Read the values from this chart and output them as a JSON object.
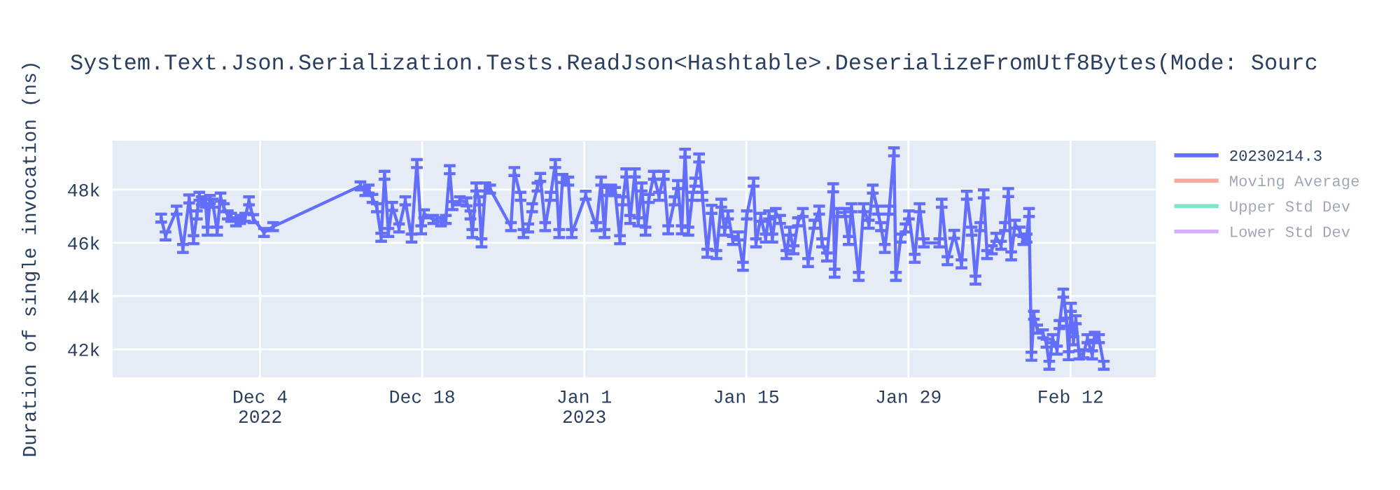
{
  "chart_data": {
    "type": "line",
    "title": "System.Text.Json.Serialization.Tests.ReadJson<Hashtable>.DeserializeFromUtf8Bytes(Mode: Sourc",
    "ylabel": "Duration of single invocation (ns)",
    "x": [
      "2022-11-25T11:00",
      "2022-11-25T20:00",
      "2022-11-26T19:00",
      "2022-11-27T08:00",
      "2022-11-27T21:00",
      "2022-11-28T06:00",
      "2022-11-28T13:00",
      "2022-11-28T18:00",
      "2022-11-28T23:00",
      "2022-11-29T07:00",
      "2022-11-29T11:00",
      "2022-11-29T16:00",
      "2022-11-29T22:00",
      "2022-11-30T07:00",
      "2022-11-30T14:00",
      "2022-11-30T21:00",
      "2022-12-01T05:00",
      "2022-12-01T12:00",
      "2022-12-01T22:00",
      "2022-12-02T07:00",
      "2022-12-02T17:00",
      "2022-12-03T01:00",
      "2022-12-03T10:00",
      "2022-12-04T08:00",
      "2022-12-05T03:00",
      "2022-12-12T16:00",
      "2022-12-13T02:00",
      "2022-12-13T09:00",
      "2022-12-13T17:00",
      "2022-12-14T02:00",
      "2022-12-14T11:00",
      "2022-12-14T18:00",
      "2022-12-15T02:00",
      "2022-12-15T10:00",
      "2022-12-16T00:00",
      "2022-12-16T13:00",
      "2022-12-17T02:00",
      "2022-12-17T13:00",
      "2022-12-17T22:00",
      "2022-12-18T04:00",
      "2022-12-18T23:00",
      "2022-12-19T15:00",
      "2022-12-20T01:00",
      "2022-12-20T09:00",
      "2022-12-20T15:00",
      "2022-12-21T06:00",
      "2022-12-21T20:00",
      "2022-12-22T04:00",
      "2022-12-22T08:00",
      "2022-12-22T16:00",
      "2022-12-22T22:00",
      "2022-12-23T03:00",
      "2022-12-23T11:00",
      "2022-12-23T21:00",
      "2022-12-25T16:00",
      "2022-12-25T23:00",
      "2022-12-26T12:00",
      "2022-12-26T18:00",
      "2022-12-27T04:00",
      "2022-12-27T12:00",
      "2022-12-27T23:00",
      "2022-12-28T05:00",
      "2022-12-28T15:00",
      "2022-12-29T02:00",
      "2022-12-29T12:00",
      "2022-12-29T20:00",
      "2022-12-30T03:00",
      "2022-12-30T15:00",
      "2022-12-30T22:00",
      "2023-01-01T03:00",
      "2023-01-02T01:00",
      "2023-01-02T11:00",
      "2023-01-02T18:00",
      "2023-01-02T23:00",
      "2023-01-03T08:00",
      "2023-01-03T16:00",
      "2023-01-04T02:00",
      "2023-01-04T08:00",
      "2023-01-04T15:00",
      "2023-01-04T23:00",
      "2023-01-05T09:00",
      "2023-01-05T16:00",
      "2023-01-05T23:00",
      "2023-01-06T07:00",
      "2023-01-06T14:00",
      "2023-01-07T00:00",
      "2023-01-07T11:00",
      "2023-01-07T21:00",
      "2023-01-08T06:00",
      "2023-01-08T19:00",
      "2023-01-09T02:00",
      "2023-01-09T10:00",
      "2023-01-09T17:00",
      "2023-01-10T00:00",
      "2023-01-10T08:00",
      "2023-01-10T14:00",
      "2023-01-10T22:00",
      "2023-01-11T05:00",
      "2023-01-11T15:00",
      "2023-01-12T00:00",
      "2023-01-12T10:00",
      "2023-01-12T20:00",
      "2023-01-13T03:00",
      "2023-01-13T10:00",
      "2023-01-13T20:00",
      "2023-01-14T07:00",
      "2023-01-14T17:00",
      "2023-01-15T01:00",
      "2023-01-15T15:00",
      "2023-01-15T20:00",
      "2023-01-16T06:00",
      "2023-01-16T16:00",
      "2023-01-16T23:00",
      "2023-01-17T06:00",
      "2023-01-17T13:00",
      "2023-01-17T22:00",
      "2023-01-18T11:00",
      "2023-01-18T18:00",
      "2023-01-19T02:00",
      "2023-01-19T11:00",
      "2023-01-19T21:00",
      "2023-01-20T08:00",
      "2023-01-20T21:00",
      "2023-01-21T07:00",
      "2023-01-21T13:00",
      "2023-01-21T23:00",
      "2023-01-22T12:00",
      "2023-01-22T15:00",
      "2023-01-22T21:00",
      "2023-01-23T12:00",
      "2023-01-23T20:00",
      "2023-01-24T02:00",
      "2023-01-24T17:00",
      "2023-01-25T03:00",
      "2023-01-25T14:00",
      "2023-01-25T22:00",
      "2023-01-26T08:00",
      "2023-01-26T15:00",
      "2023-01-26T23:00",
      "2023-01-27T08:00",
      "2023-01-27T18:00",
      "2023-01-27T22:00",
      "2023-01-28T08:00",
      "2023-01-28T18:00",
      "2023-01-29T01:00",
      "2023-01-29T13:00",
      "2023-01-29T23:00",
      "2023-01-30T08:00",
      "2023-01-31T16:00",
      "2023-01-31T21:00",
      "2023-02-01T09:00",
      "2023-02-01T23:00",
      "2023-02-02T14:00",
      "2023-02-03T01:00",
      "2023-02-03T11:00",
      "2023-02-03T19:00",
      "2023-02-04T05:00",
      "2023-02-04T12:00",
      "2023-02-04T19:00",
      "2023-02-05T05:00",
      "2023-02-05T14:00",
      "2023-02-06T00:00",
      "2023-02-06T08:00",
      "2023-02-06T15:00",
      "2023-02-06T21:00",
      "2023-02-07T05:00",
      "2023-02-07T15:00",
      "2023-02-07T22:00",
      "2023-02-08T05:00",
      "2023-02-08T10:00",
      "2023-02-08T15:00",
      "2023-02-08T20:00",
      "2023-02-09T03:00",
      "2023-02-09T15:00",
      "2023-02-09T22:00",
      "2023-02-10T04:00",
      "2023-02-10T11:00",
      "2023-02-10T20:00",
      "2023-02-11T01:00",
      "2023-02-11T09:00",
      "2023-02-11T16:00",
      "2023-02-11T20:00",
      "2023-02-12T01:00",
      "2023-02-12T06:00",
      "2023-02-12T11:00",
      "2023-02-12T18:00",
      "2023-02-13T03:00",
      "2023-02-13T11:00",
      "2023-02-13T21:00",
      "2023-02-14T02:00",
      "2023-02-14T11:00",
      "2023-02-14T21:00"
    ],
    "series": [
      {
        "name": "20230214.3",
        "color": "#636efa",
        "values": [
          46930,
          46260,
          47230,
          45790,
          47650,
          46120,
          47050,
          47750,
          47580,
          47490,
          46440,
          47630,
          47490,
          46440,
          47720,
          47320,
          47050,
          46960,
          46790,
          46880,
          46960,
          47580,
          46910,
          46390,
          46610,
          48140,
          47930,
          48020,
          47670,
          47320,
          46210,
          48540,
          46390,
          47370,
          46560,
          47580,
          46180,
          48980,
          46490,
          47090,
          46880,
          46790,
          46880,
          48750,
          47400,
          47580,
          47540,
          47050,
          46350,
          48100,
          47580,
          46000,
          48100,
          48020,
          46610,
          48680,
          47750,
          46350,
          46560,
          47320,
          48100,
          48460,
          46610,
          47750,
          48980,
          46350,
          48420,
          48320,
          46350,
          47790,
          46610,
          48320,
          46350,
          47930,
          48020,
          47930,
          46120,
          47580,
          48630,
          46880,
          48630,
          46790,
          48100,
          46440,
          47670,
          48540,
          47750,
          48540,
          46490,
          47580,
          48190,
          46490,
          49370,
          46440,
          47750,
          48280,
          49190,
          47750,
          45610,
          47260,
          45560,
          47490,
          46440,
          47050,
          46090,
          46260,
          45120,
          47050,
          48280,
          46000,
          46960,
          46180,
          47050,
          46180,
          47140,
          46880,
          45560,
          46440,
          45740,
          46790,
          47140,
          45260,
          46700,
          47230,
          46000,
          45470,
          48070,
          44860,
          47140,
          47140,
          46090,
          47320,
          44740,
          47320,
          46700,
          48020,
          47230,
          46610,
          45790,
          47230,
          49420,
          44740,
          46180,
          46560,
          47050,
          45420,
          47320,
          46000,
          46000,
          47490,
          45330,
          46320,
          45210,
          47790,
          46440,
          44600,
          46610,
          47840,
          45560,
          45740,
          46210,
          45910,
          46610,
          47890,
          45510,
          46700,
          46440,
          46090,
          46180,
          47140,
          41740,
          43280,
          42760,
          42580,
          42230,
          41400,
          42400,
          41970,
          42930,
          44110,
          43020,
          41760,
          43580,
          42320,
          43110,
          41790,
          41830,
          42400,
          41790,
          42490,
          42400,
          41400
        ],
        "errors": [
          150,
          150,
          150,
          150,
          150,
          150,
          150,
          150,
          150,
          150,
          150,
          150,
          150,
          150,
          150,
          150,
          150,
          150,
          150,
          150,
          150,
          150,
          150,
          150,
          150,
          150,
          150,
          150,
          150,
          150,
          150,
          150,
          150,
          150,
          150,
          150,
          150,
          150,
          150,
          150,
          150,
          150,
          150,
          150,
          150,
          150,
          150,
          150,
          150,
          150,
          150,
          150,
          150,
          150,
          150,
          150,
          150,
          150,
          150,
          150,
          150,
          150,
          150,
          150,
          150,
          150,
          150,
          150,
          150,
          150,
          150,
          150,
          150,
          150,
          150,
          150,
          150,
          150,
          150,
          150,
          150,
          150,
          150,
          150,
          150,
          150,
          150,
          150,
          150,
          150,
          150,
          150,
          150,
          150,
          150,
          150,
          150,
          150,
          150,
          150,
          150,
          150,
          150,
          150,
          150,
          150,
          150,
          150,
          150,
          150,
          150,
          150,
          150,
          150,
          150,
          150,
          150,
          150,
          150,
          150,
          150,
          150,
          150,
          150,
          150,
          150,
          150,
          150,
          150,
          150,
          150,
          150,
          150,
          150,
          150,
          150,
          150,
          150,
          150,
          150,
          150,
          150,
          150,
          150,
          150,
          150,
          150,
          150,
          150,
          150,
          150,
          150,
          150,
          150,
          150,
          150,
          150,
          150,
          150,
          150,
          150,
          150,
          150,
          150,
          150,
          150,
          150,
          150,
          150,
          150,
          150,
          150,
          150,
          150,
          150,
          150,
          150,
          150,
          150,
          150,
          150,
          150,
          150,
          150,
          150,
          150,
          150,
          150,
          150,
          150,
          150,
          150
        ]
      },
      {
        "name": "Moving Average",
        "color": "#ef553b",
        "values": [
          null,
          null,
          null,
          null,
          null,
          null,
          null,
          null,
          null,
          null,
          null,
          null,
          null,
          null,
          null,
          null,
          null,
          null,
          null,
          null,
          null,
          null,
          null,
          null,
          null,
          null,
          null,
          null,
          null,
          null,
          null,
          null,
          null,
          null,
          null,
          null,
          null,
          null,
          null,
          null,
          null,
          null,
          null,
          null,
          null,
          null,
          null,
          null,
          null,
          null,
          null,
          null,
          null,
          null,
          null,
          null,
          null,
          null,
          null,
          null,
          null,
          null,
          null,
          null,
          null,
          null,
          null,
          null,
          null,
          null,
          null,
          null,
          null,
          null,
          null,
          null,
          null,
          null,
          null,
          null,
          null,
          null,
          null,
          null,
          null,
          null,
          null,
          null,
          null,
          null,
          null,
          null,
          null,
          null,
          null,
          null,
          null,
          null,
          null,
          null,
          null,
          null,
          null,
          null,
          null,
          null,
          null,
          null,
          null,
          null,
          null,
          null,
          null,
          null,
          null,
          null,
          null,
          null,
          null,
          null,
          null,
          null,
          null,
          null,
          null,
          null,
          null,
          null,
          null,
          null,
          null,
          null,
          null,
          null,
          null,
          null,
          null,
          null,
          null,
          null,
          null,
          null,
          null,
          null,
          null,
          null,
          null,
          null,
          null,
          null,
          null,
          null,
          null,
          null,
          null,
          null,
          null,
          null,
          null,
          null,
          null,
          null,
          null,
          null,
          null,
          null,
          null,
          null,
          null,
          null,
          null,
          null,
          null,
          null,
          null,
          null,
          null,
          null,
          null,
          null,
          null,
          null,
          null,
          null,
          null,
          null,
          null,
          null,
          null,
          null,
          null,
          null
        ]
      },
      {
        "name": "Upper Std Dev",
        "color": "#00cc96",
        "values": [
          null,
          null,
          null,
          null,
          null,
          null,
          null,
          null,
          null,
          null,
          null,
          null,
          null,
          null,
          null,
          null,
          null,
          null,
          null,
          null,
          null,
          null,
          null,
          null,
          null,
          null,
          null,
          null,
          null,
          null,
          null,
          null,
          null,
          null,
          null,
          null,
          null,
          null,
          null,
          null,
          null,
          null,
          null,
          null,
          null,
          null,
          null,
          null,
          null,
          null,
          null,
          null,
          null,
          null,
          null,
          null,
          null,
          null,
          null,
          null,
          null,
          null,
          null,
          null,
          null,
          null,
          null,
          null,
          null,
          null,
          null,
          null,
          null,
          null,
          null,
          null,
          null,
          null,
          null,
          null,
          null,
          null,
          null,
          null,
          null,
          null,
          null,
          null,
          null,
          null,
          null,
          null,
          null,
          null,
          null,
          null,
          null,
          null,
          null,
          null,
          null,
          null,
          null,
          null,
          null,
          null,
          null,
          null,
          null,
          null,
          null,
          null,
          null,
          null,
          null,
          null,
          null,
          null,
          null,
          null,
          null,
          null,
          null,
          null,
          null,
          null,
          null,
          null,
          null,
          null,
          null,
          null,
          null,
          null,
          null,
          null,
          null,
          null,
          null,
          null,
          null,
          null,
          null,
          null,
          null,
          null,
          null,
          null,
          null,
          null,
          null,
          null,
          null,
          null,
          null,
          null,
          null,
          null,
          null,
          null,
          null,
          null,
          null,
          null,
          null,
          null,
          null,
          null,
          null,
          null,
          null,
          null,
          null,
          null,
          null,
          null,
          null,
          null,
          null,
          null,
          null,
          null,
          null,
          null,
          null,
          null,
          null,
          null,
          null,
          null,
          null,
          null
        ]
      },
      {
        "name": "Lower Std Dev",
        "color": "#ab63fa",
        "values": [
          null,
          null,
          null,
          null,
          null,
          null,
          null,
          null,
          null,
          null,
          null,
          null,
          null,
          null,
          null,
          null,
          null,
          null,
          null,
          null,
          null,
          null,
          null,
          null,
          null,
          null,
          null,
          null,
          null,
          null,
          null,
          null,
          null,
          null,
          null,
          null,
          null,
          null,
          null,
          null,
          null,
          null,
          null,
          null,
          null,
          null,
          null,
          null,
          null,
          null,
          null,
          null,
          null,
          null,
          null,
          null,
          null,
          null,
          null,
          null,
          null,
          null,
          null,
          null,
          null,
          null,
          null,
          null,
          null,
          null,
          null,
          null,
          null,
          null,
          null,
          null,
          null,
          null,
          null,
          null,
          null,
          null,
          null,
          null,
          null,
          null,
          null,
          null,
          null,
          null,
          null,
          null,
          null,
          null,
          null,
          null,
          null,
          null,
          null,
          null,
          null,
          null,
          null,
          null,
          null,
          null,
          null,
          null,
          null,
          null,
          null,
          null,
          null,
          null,
          null,
          null,
          null,
          null,
          null,
          null,
          null,
          null,
          null,
          null,
          null,
          null,
          null,
          null,
          null,
          null,
          null,
          null,
          null,
          null,
          null,
          null,
          null,
          null,
          null,
          null,
          null,
          null,
          null,
          null,
          null,
          null,
          null,
          null,
          null,
          null,
          null,
          null,
          null,
          null,
          null,
          null,
          null,
          null,
          null,
          null,
          null,
          null,
          null,
          null,
          null,
          null,
          null,
          null,
          null,
          null,
          null,
          null,
          null,
          null,
          null,
          null,
          null,
          null,
          null,
          null,
          null,
          null,
          null,
          null,
          null,
          null,
          null,
          null,
          null,
          null,
          null,
          null
        ]
      }
    ],
    "xlim": [
      "2022-11-21T05:00",
      "2023-02-19T10:00"
    ],
    "xticks": [
      {
        "value": "2022-12-04",
        "label": "Dec 4\n2022"
      },
      {
        "value": "2022-12-18",
        "label": "Dec 18"
      },
      {
        "value": "2023-01-01",
        "label": "Jan 1\n2023"
      },
      {
        "value": "2023-01-15",
        "label": "Jan 15"
      },
      {
        "value": "2023-01-29",
        "label": "Jan 29"
      },
      {
        "value": "2023-02-12",
        "label": "Feb 12"
      }
    ],
    "ylim": [
      40930,
      49860
    ],
    "yticks": [
      {
        "value": 42000,
        "label": "42k"
      },
      {
        "value": 44000,
        "label": "44k"
      },
      {
        "value": 46000,
        "label": "46k"
      },
      {
        "value": 48000,
        "label": "48k"
      }
    ],
    "grid": true,
    "legend": "top right",
    "marker": "none",
    "line_style": "solid"
  }
}
